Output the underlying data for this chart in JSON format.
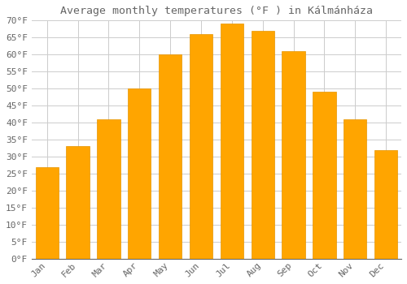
{
  "title": "Average monthly temperatures (°F ) in Kálmánháza",
  "months": [
    "Jan",
    "Feb",
    "Mar",
    "Apr",
    "May",
    "Jun",
    "Jul",
    "Aug",
    "Sep",
    "Oct",
    "Nov",
    "Dec"
  ],
  "values": [
    27,
    33,
    41,
    50,
    60,
    66,
    69,
    67,
    61,
    49,
    41,
    32
  ],
  "bar_color": "#FFA500",
  "bar_edge_color": "#E69500",
  "background_color": "#FFFFFF",
  "grid_color": "#CCCCCC",
  "text_color": "#666666",
  "ylim": [
    0,
    70
  ],
  "yticks": [
    0,
    5,
    10,
    15,
    20,
    25,
    30,
    35,
    40,
    45,
    50,
    55,
    60,
    65,
    70
  ],
  "title_fontsize": 9.5,
  "tick_fontsize": 8,
  "figsize": [
    5.0,
    3.5
  ],
  "dpi": 100
}
